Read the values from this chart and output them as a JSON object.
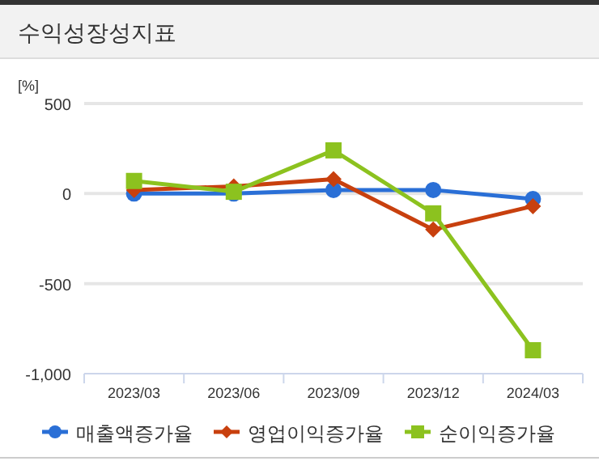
{
  "chart_data": {
    "type": "line",
    "title": "수익성장성지표",
    "ylabel": "[%]",
    "categories": [
      "2023/03",
      "2023/06",
      "2023/09",
      "2023/12",
      "2024/03"
    ],
    "series": [
      {
        "name": "매출액증가율",
        "color": "#2a6fd6",
        "marker": "circle",
        "values": [
          0,
          0,
          20,
          20,
          -30
        ]
      },
      {
        "name": "영업이익증가율",
        "color": "#c8400e",
        "marker": "diamond",
        "values": [
          20,
          40,
          80,
          -200,
          -70
        ]
      },
      {
        "name": "순이익증가율",
        "color": "#8cc21f",
        "marker": "square",
        "values": [
          70,
          10,
          240,
          -110,
          -870
        ]
      }
    ],
    "ylim": [
      -1000,
      500
    ],
    "yticks": [
      {
        "value": -1000,
        "label": "-1,000"
      },
      {
        "value": -500,
        "label": "-500"
      },
      0,
      500
    ],
    "grid": "y",
    "legend": "bottom",
    "line_style": "solid"
  }
}
